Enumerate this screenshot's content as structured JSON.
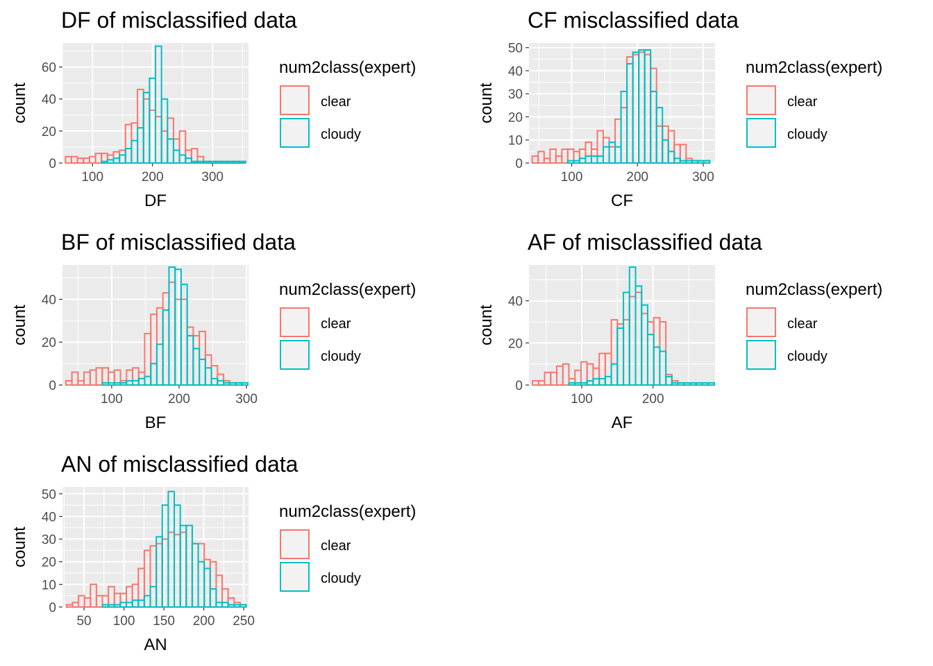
{
  "colors": {
    "clear": "#F8766D",
    "cloudy": "#00BFC4",
    "panel_bg": "#EBEBEB",
    "grid": "#FFFFFF",
    "tick_text": "#4D4D4D"
  },
  "chart_data": [
    {
      "type": "bar",
      "title": "DF of misclassified data",
      "xlabel": "DF",
      "ylabel": "count",
      "xlim": [
        50,
        360
      ],
      "ylim": [
        0,
        75
      ],
      "xticks": [
        100,
        200,
        300
      ],
      "yticks": [
        0,
        20,
        40,
        60
      ],
      "legend": {
        "title": "num2class(expert)",
        "position": "right"
      },
      "bin_start": 55,
      "bin_width": 10,
      "series": [
        {
          "name": "clear",
          "values": [
            4,
            4,
            3,
            3,
            4,
            6,
            6,
            5,
            7,
            8,
            24,
            25,
            46,
            40,
            33,
            29,
            20,
            28,
            15,
            20,
            8,
            9,
            4,
            1,
            1,
            1,
            1,
            1,
            1,
            1
          ]
        },
        {
          "name": "cloudy",
          "values": [
            0,
            0,
            0,
            0,
            0,
            0,
            1,
            2,
            3,
            5,
            9,
            14,
            22,
            44,
            53,
            73,
            40,
            15,
            8,
            5,
            3,
            1,
            1,
            1,
            1,
            1,
            1,
            1,
            1,
            1
          ]
        }
      ]
    },
    {
      "type": "bar",
      "title": "CF misclassified data",
      "xlabel": "CF",
      "ylabel": "count",
      "xlim": [
        35,
        318
      ],
      "ylim": [
        0,
        52
      ],
      "xticks": [
        100,
        200,
        300
      ],
      "yticks": [
        0,
        10,
        20,
        30,
        40,
        50
      ],
      "legend": {
        "title": "num2class(expert)",
        "position": "right"
      },
      "bin_start": 40,
      "bin_width": 9,
      "series": [
        {
          "name": "clear",
          "values": [
            3,
            5,
            2,
            6,
            3,
            6,
            6,
            5,
            6,
            9,
            6,
            14,
            11,
            7,
            19,
            24,
            46,
            47,
            48,
            47,
            41,
            16,
            16,
            14,
            8,
            8,
            2,
            1,
            1,
            1
          ]
        },
        {
          "name": "cloudy",
          "values": [
            0,
            0,
            0,
            0,
            0,
            0,
            1,
            1,
            2,
            3,
            3,
            3,
            7,
            9,
            7,
            31,
            43,
            48,
            49,
            49,
            31,
            24,
            10,
            5,
            2,
            1,
            1,
            1,
            1,
            1
          ]
        }
      ]
    },
    {
      "type": "bar",
      "title": "BF of misclassified data",
      "xlabel": "BF",
      "ylabel": "count",
      "xlim": [
        27,
        303
      ],
      "ylim": [
        0,
        56
      ],
      "xticks": [
        100,
        200,
        300
      ],
      "yticks": [
        0,
        20,
        40
      ],
      "legend": {
        "title": "num2class(expert)",
        "position": "right"
      },
      "bin_start": 32,
      "bin_width": 9,
      "series": [
        {
          "name": "clear",
          "values": [
            2,
            6,
            2,
            6,
            7,
            8,
            8,
            6,
            7,
            2,
            7,
            8,
            6,
            24,
            33,
            36,
            43,
            48,
            40,
            40,
            27,
            23,
            25,
            14,
            9,
            5,
            2,
            1,
            1,
            1
          ]
        },
        {
          "name": "cloudy",
          "values": [
            0,
            0,
            0,
            0,
            0,
            0,
            1,
            1,
            1,
            1,
            2,
            2,
            3,
            4,
            10,
            19,
            35,
            55,
            54,
            47,
            23,
            17,
            12,
            8,
            3,
            2,
            1,
            1,
            1,
            1
          ]
        }
      ]
    },
    {
      "type": "bar",
      "title": "AF of misclassified data",
      "xlabel": "AF",
      "ylabel": "count",
      "xlim": [
        26,
        287
      ],
      "ylim": [
        0,
        57
      ],
      "xticks": [
        100,
        200
      ],
      "yticks": [
        0,
        20,
        40
      ],
      "legend": {
        "title": "num2class(expert)",
        "position": "right"
      },
      "bin_start": 31,
      "bin_width": 8.5,
      "series": [
        {
          "name": "clear",
          "values": [
            2,
            2,
            6,
            6,
            9,
            10,
            3,
            7,
            11,
            10,
            8,
            15,
            15,
            31,
            29,
            31,
            42,
            44,
            34,
            30,
            32,
            30,
            5,
            2,
            1,
            1,
            1,
            1,
            1,
            1
          ]
        },
        {
          "name": "cloudy",
          "values": [
            0,
            0,
            0,
            0,
            0,
            0,
            1,
            1,
            1,
            2,
            3,
            3,
            4,
            10,
            27,
            44,
            56,
            47,
            38,
            24,
            18,
            16,
            4,
            1,
            1,
            1,
            1,
            1,
            1,
            1
          ]
        }
      ]
    },
    {
      "type": "bar",
      "title": "AN of misclassified data",
      "xlabel": "AN",
      "ylabel": "count",
      "xlim": [
        23,
        256
      ],
      "ylim": [
        0,
        53
      ],
      "xticks": [
        50,
        100,
        150,
        200,
        250
      ],
      "yticks": [
        0,
        10,
        20,
        30,
        40,
        50
      ],
      "legend": {
        "title": "num2class(expert)",
        "position": "right"
      },
      "bin_start": 28,
      "bin_width": 7.5,
      "series": [
        {
          "name": "clear",
          "values": [
            1,
            2,
            5,
            4,
            10,
            5,
            5,
            9,
            6,
            6,
            9,
            10,
            17,
            25,
            27,
            28,
            30,
            33,
            32,
            33,
            36,
            28,
            28,
            21,
            20,
            14,
            8,
            4,
            2,
            1
          ]
        },
        {
          "name": "cloudy",
          "values": [
            0,
            0,
            0,
            0,
            0,
            0,
            1,
            1,
            1,
            2,
            2,
            3,
            3,
            5,
            9,
            31,
            45,
            51,
            45,
            36,
            36,
            28,
            20,
            17,
            8,
            2,
            2,
            1,
            1,
            1
          ]
        }
      ]
    }
  ]
}
